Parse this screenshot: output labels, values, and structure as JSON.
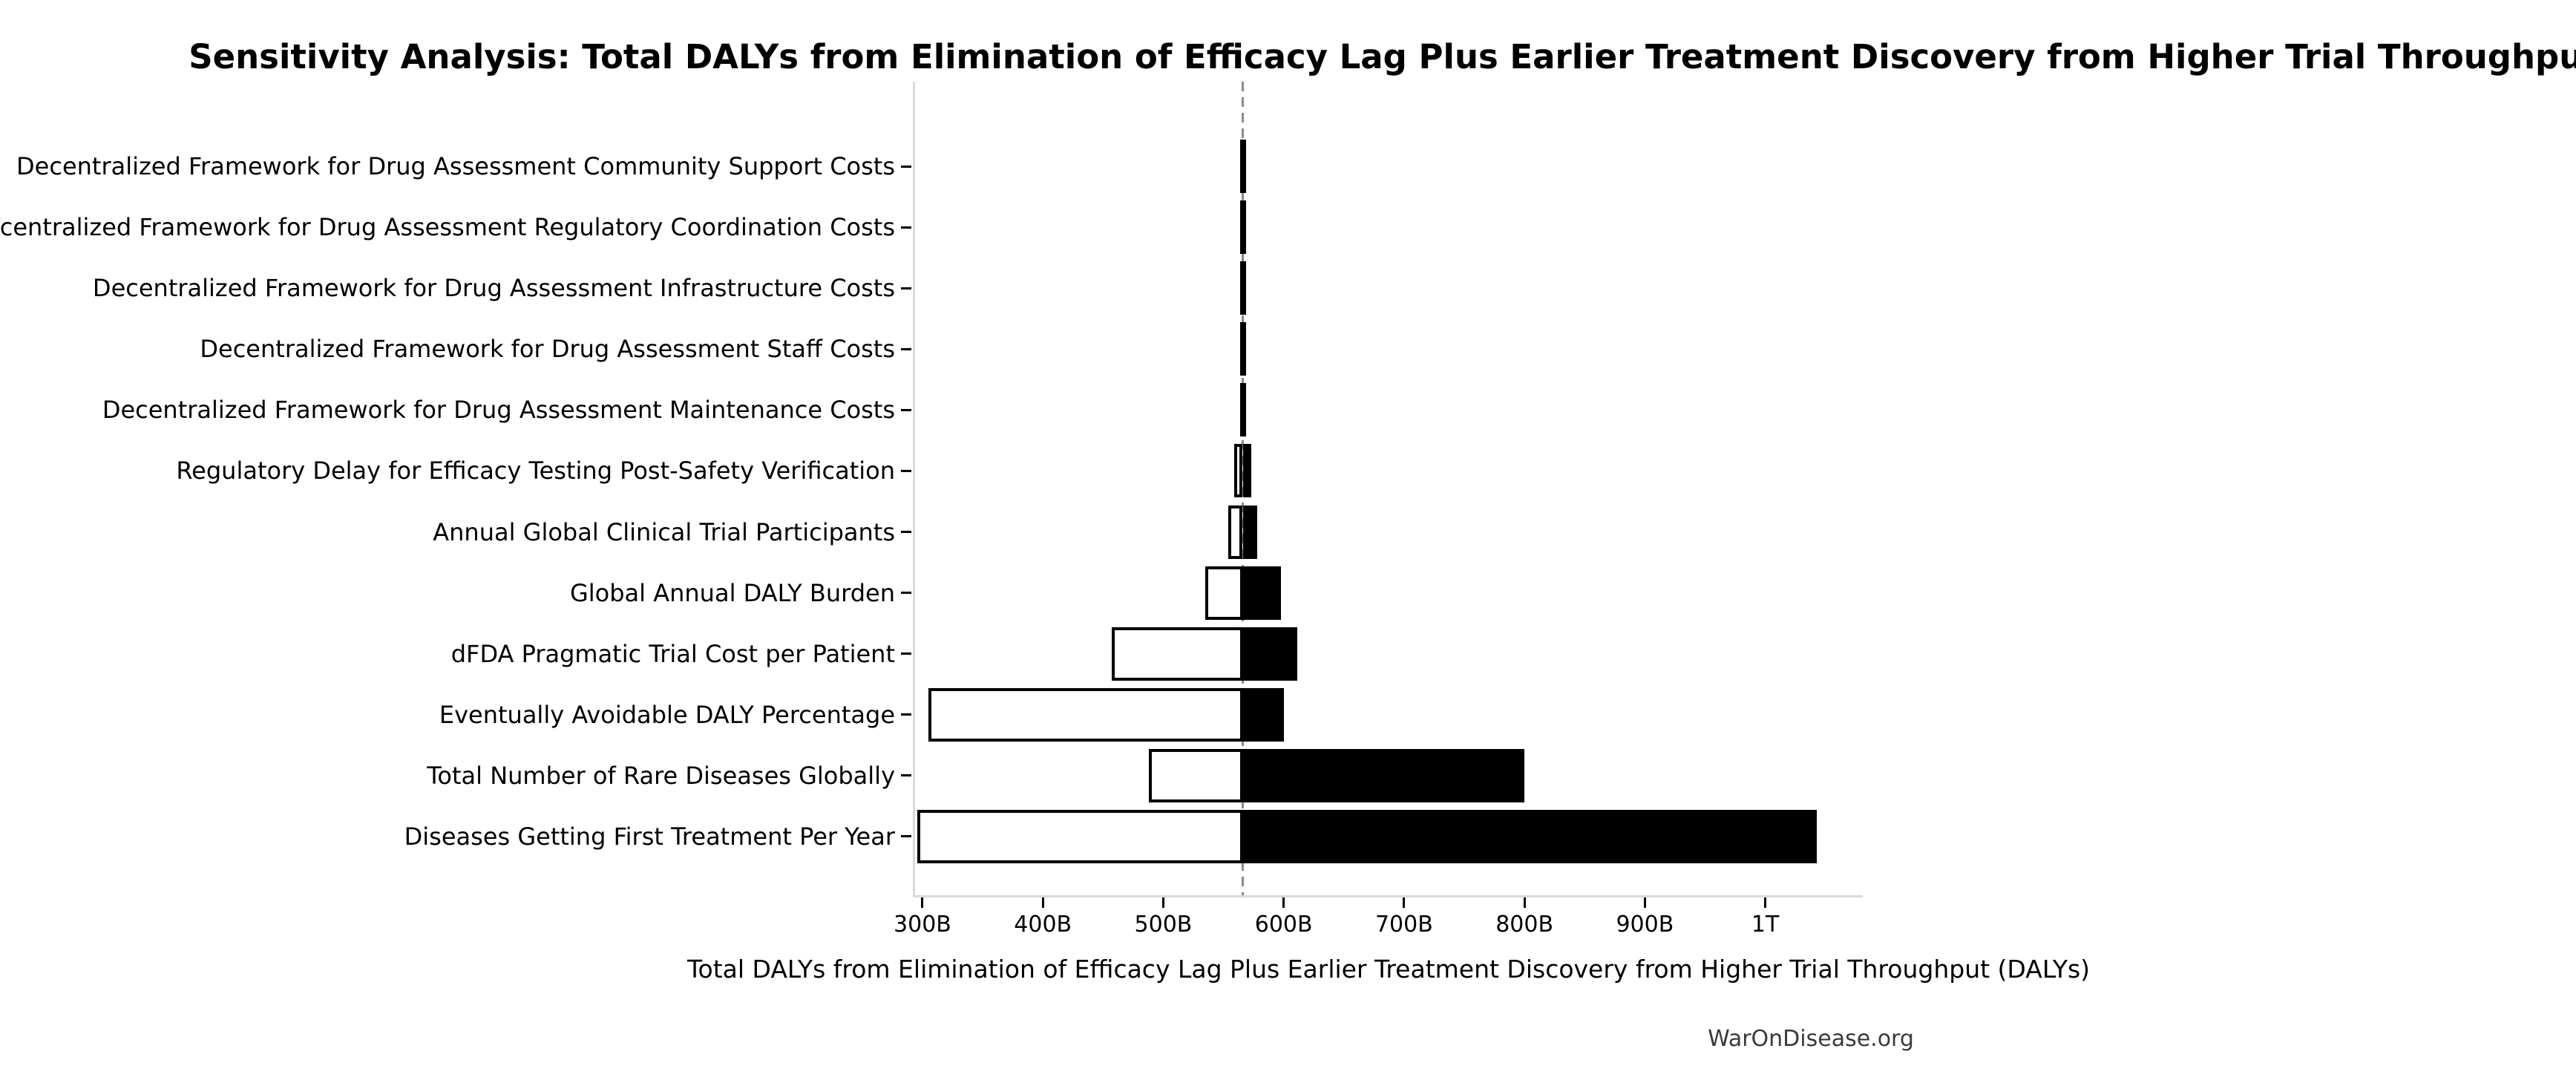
{
  "page": {
    "title": "Sensitivity Analysis: Total DALYs from Elimination of Efficacy Lag Plus Earlier Treatment Discovery from Higher Trial Throughput",
    "footer": "WarOnDisease.org"
  },
  "chart_data": {
    "type": "bar",
    "subtype": "tornado",
    "title": "Sensitivity Analysis: Total DALYs from Elimination of Efficacy Lag Plus Earlier Treatment Discovery from Higher Trial Throughput",
    "xlabel": "Total DALYs from Elimination of Efficacy Lag Plus Earlier Treatment Discovery from Higher Trial Throughput (DALYs)",
    "value_unit": "billions of DALYs",
    "baseline_value": 566,
    "xlim": [
      292,
      1081
    ],
    "grid": false,
    "legend": "none",
    "xticks": [
      {
        "value": 300,
        "label": "300B"
      },
      {
        "value": 400,
        "label": "400B"
      },
      {
        "value": 500,
        "label": "500B"
      },
      {
        "value": 600,
        "label": "600B"
      },
      {
        "value": 700,
        "label": "700B"
      },
      {
        "value": 800,
        "label": "800B"
      },
      {
        "value": 900,
        "label": "900B"
      },
      {
        "value": 1000,
        "label": "1T"
      }
    ],
    "rows": [
      {
        "label": "Decentralized Framework for Drug Assessment Community Support Costs",
        "low": 564,
        "high": 568
      },
      {
        "label": "Decentralized Framework for Drug Assessment Regulatory Coordination Costs",
        "low": 564,
        "high": 568
      },
      {
        "label": "Decentralized Framework for Drug Assessment Infrastructure Costs",
        "low": 564,
        "high": 568
      },
      {
        "label": "Decentralized Framework for Drug Assessment Staff Costs",
        "low": 564,
        "high": 568
      },
      {
        "label": "Decentralized Framework for Drug Assessment Maintenance Costs",
        "low": 564,
        "high": 568
      },
      {
        "label": "Regulatory Delay for Efficacy Testing Post-Safety Verification",
        "low": 559,
        "high": 573
      },
      {
        "label": "Annual Global Clinical Trial Participants",
        "low": 554,
        "high": 578
      },
      {
        "label": "Global Annual DALY Burden",
        "low": 535,
        "high": 598
      },
      {
        "label": "dFDA Pragmatic Trial Cost per Patient",
        "low": 457,
        "high": 611
      },
      {
        "label": "Eventually Avoidable DALY Percentage",
        "low": 305,
        "high": 600
      },
      {
        "label": "Total Number of Rare Diseases Globally",
        "low": 488,
        "high": 800
      },
      {
        "label": "Diseases Getting First Treatment Per Year",
        "low": 296,
        "high": 1043
      }
    ],
    "colors": {
      "low_bar_fill": "#ffffff",
      "high_bar_fill": "#000000",
      "bar_border": "#000000",
      "baseline_line": "#8a8a8a",
      "spine": "#d9d9d9",
      "tick_mark": "#000000",
      "text": "#000000",
      "footer_text": "#3a3a3a"
    }
  }
}
